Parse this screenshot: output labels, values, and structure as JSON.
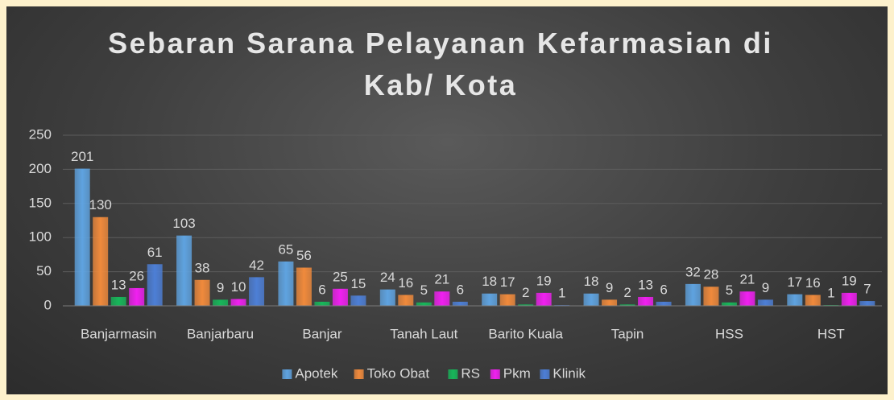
{
  "chart_data": {
    "type": "bar",
    "title": "Sebaran Sarana Pelayanan Kefarmasian di Kab/ Kota",
    "categories": [
      "Banjarmasin",
      "Banjarbaru",
      "Banjar",
      "Tanah Laut",
      "Barito Kuala",
      "Tapin",
      "HSS",
      "HST"
    ],
    "series": [
      {
        "name": "Apotek",
        "color": "#5fa3e0",
        "values": [
          201,
          103,
          65,
          24,
          18,
          18,
          32,
          17
        ]
      },
      {
        "name": "Toko Obat",
        "color": "#f08a3c",
        "values": [
          130,
          38,
          56,
          16,
          17,
          9,
          28,
          16
        ]
      },
      {
        "name": "RS",
        "color": "#17b75a",
        "values": [
          13,
          9,
          6,
          5,
          2,
          2,
          5,
          1
        ]
      },
      {
        "name": "Pkm",
        "color": "#f020f0",
        "values": [
          26,
          10,
          25,
          21,
          19,
          13,
          21,
          19
        ]
      },
      {
        "name": "Klinik",
        "color": "#4d7fd6",
        "values": [
          61,
          42,
          15,
          6,
          1,
          6,
          9,
          7
        ]
      }
    ],
    "ylim": [
      0,
      250
    ],
    "yticks": [
      0,
      50,
      100,
      150,
      200,
      250
    ],
    "grid": true,
    "legend": "bottom"
  }
}
